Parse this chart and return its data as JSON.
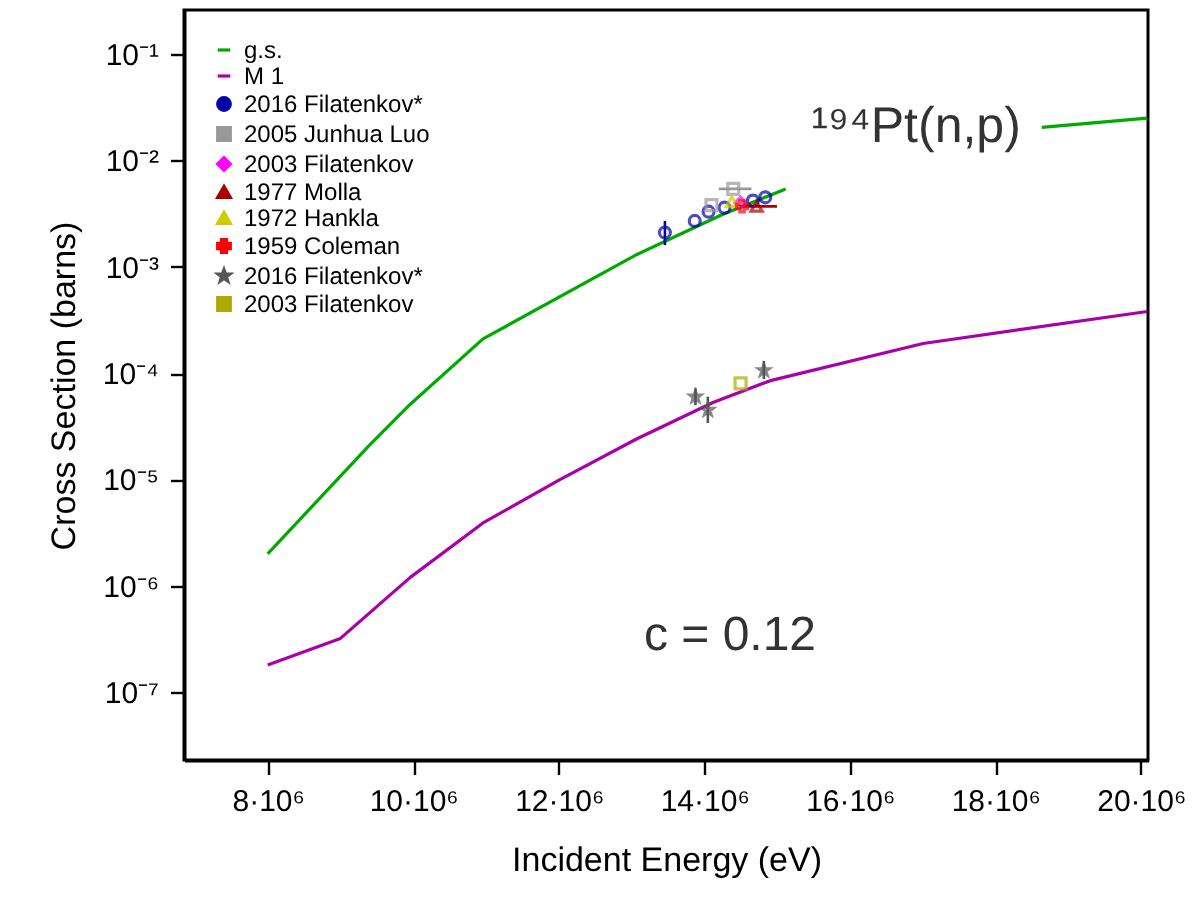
{
  "chart_data": {
    "type": "line",
    "xlabel": "Incident Energy (eV)",
    "ylabel": "Cross Section (barns)",
    "annotations": [
      "¹⁹⁴Pt(n,p)",
      "c = 0.12"
    ],
    "xlim": [
      6850000.0,
      20100000.0
    ],
    "ylim": [
      2.3e-08,
      0.26
    ],
    "log": "y",
    "grid": false,
    "legend": "top left",
    "xticks": [
      {
        "value": 8000000.0,
        "label": "8·10⁶"
      },
      {
        "value": 10000000.0,
        "label": "10·10⁶"
      },
      {
        "value": 12000000.0,
        "label": "12·10⁶"
      },
      {
        "value": 14000000.0,
        "label": "14·10⁶"
      },
      {
        "value": 16000000.0,
        "label": "16·10⁶"
      },
      {
        "value": 18000000.0,
        "label": "18·10⁶"
      },
      {
        "value": 20000000.0,
        "label": "20·10⁶"
      }
    ],
    "yticks": [
      {
        "value": 1e-07,
        "label": "10⁻⁷"
      },
      {
        "value": 1e-06,
        "label": "10⁻⁶"
      },
      {
        "value": 1e-05,
        "label": "10⁻⁵"
      },
      {
        "value": 0.0001,
        "label": "10⁻⁴"
      },
      {
        "value": 0.001,
        "label": "10⁻³"
      },
      {
        "value": 0.01,
        "label": "10⁻²"
      },
      {
        "value": 0.1,
        "label": "10⁻¹"
      }
    ],
    "series": [
      {
        "name": "g.s.",
        "color": "#00aa00",
        "marker": "none",
        "x": [
          8000000.0,
          9400000.0,
          9960000.0,
          10960000.0,
          13070000.0,
          13720000.0,
          14250000.0,
          15120000.0,
          16900000.0,
          18640000.0,
          20090000.0
        ],
        "values": [
          2e-06,
          2.1e-05,
          5.1e-05,
          0.00021,
          0.0013,
          0.0021,
          0.0031,
          0.0054,
          null,
          0.0205,
          0.025
        ]
      },
      {
        "name": "M 1",
        "color": "#aa00aa",
        "marker": "none",
        "x": [
          8000000.0,
          9000000.0,
          9960000.0,
          10960000.0,
          12010000.0,
          13070000.0,
          14120000.0,
          14910000.0,
          17010000.0,
          20090000.0
        ],
        "values": [
          1.8e-07,
          3.2e-07,
          1.2e-06,
          3.9e-06,
          9.9e-06,
          2.4e-05,
          5.3e-05,
          8.5e-05,
          0.00019,
          0.00038
        ]
      },
      {
        "name": "2016 Filatenkov*",
        "type": "scatter",
        "color": "#0000aa",
        "marker": "circle",
        "x": [
          13460000.0,
          13870000.0,
          14060000.0,
          14280000.0,
          14670000.0,
          14840000.0
        ],
        "values": [
          0.0021,
          0.0027,
          0.0033,
          0.0036,
          0.0042,
          0.0045
        ],
        "errors": [
          [
            0.0016,
            0.0027
          ],
          null,
          null,
          null,
          null,
          null
        ]
      },
      {
        "name": "2005 Junhua Luo",
        "type": "scatter",
        "color": "#999999",
        "marker": "square",
        "x": [
          14100000.0,
          14400000.0
        ],
        "values": [
          0.0038,
          0.0054
        ],
        "xerrors": [
          null,
          [
            14200000.0,
            14650000.0
          ]
        ]
      },
      {
        "name": "2003 Filatenkov",
        "type": "scatter",
        "color": "#ff00ff",
        "marker": "diamond",
        "x": [
          14500000.0
        ],
        "values": [
          0.004
        ]
      },
      {
        "name": "1977 Molla",
        "type": "scatter",
        "color": "#aa0000",
        "marker": "triangle",
        "x": [
          14720000.0
        ],
        "values": [
          0.0037
        ],
        "xerrors": [
          [
            14450000.0,
            15000000.0
          ]
        ]
      },
      {
        "name": "1972 Hankla",
        "type": "scatter",
        "color": "#cccc00",
        "marker": "triangle",
        "x": [
          14380000.0
        ],
        "values": [
          0.0041
        ]
      },
      {
        "name": "1959 Coleman",
        "type": "scatter",
        "color": "#ff0000",
        "marker": "cross",
        "x": [
          14520000.0
        ],
        "values": [
          0.0037
        ]
      },
      {
        "name": "2016 Filatenkov*",
        "type": "scatter",
        "color": "#555555",
        "marker": "star",
        "x": [
          13880000.0,
          14050000.0,
          14820000.0
        ],
        "values": [
          6e-05,
          4.5e-05,
          0.000106
        ],
        "errors": [
          [
            5e-05,
            7.2e-05
          ],
          [
            3.4e-05,
            6e-05
          ],
          [
            8.8e-05,
            0.00013
          ]
        ]
      },
      {
        "name": "2003 Filatenkov",
        "type": "scatter",
        "color": "#aaaa00",
        "marker": "square",
        "x": [
          14500000.0
        ],
        "values": [
          8e-05
        ]
      }
    ]
  }
}
